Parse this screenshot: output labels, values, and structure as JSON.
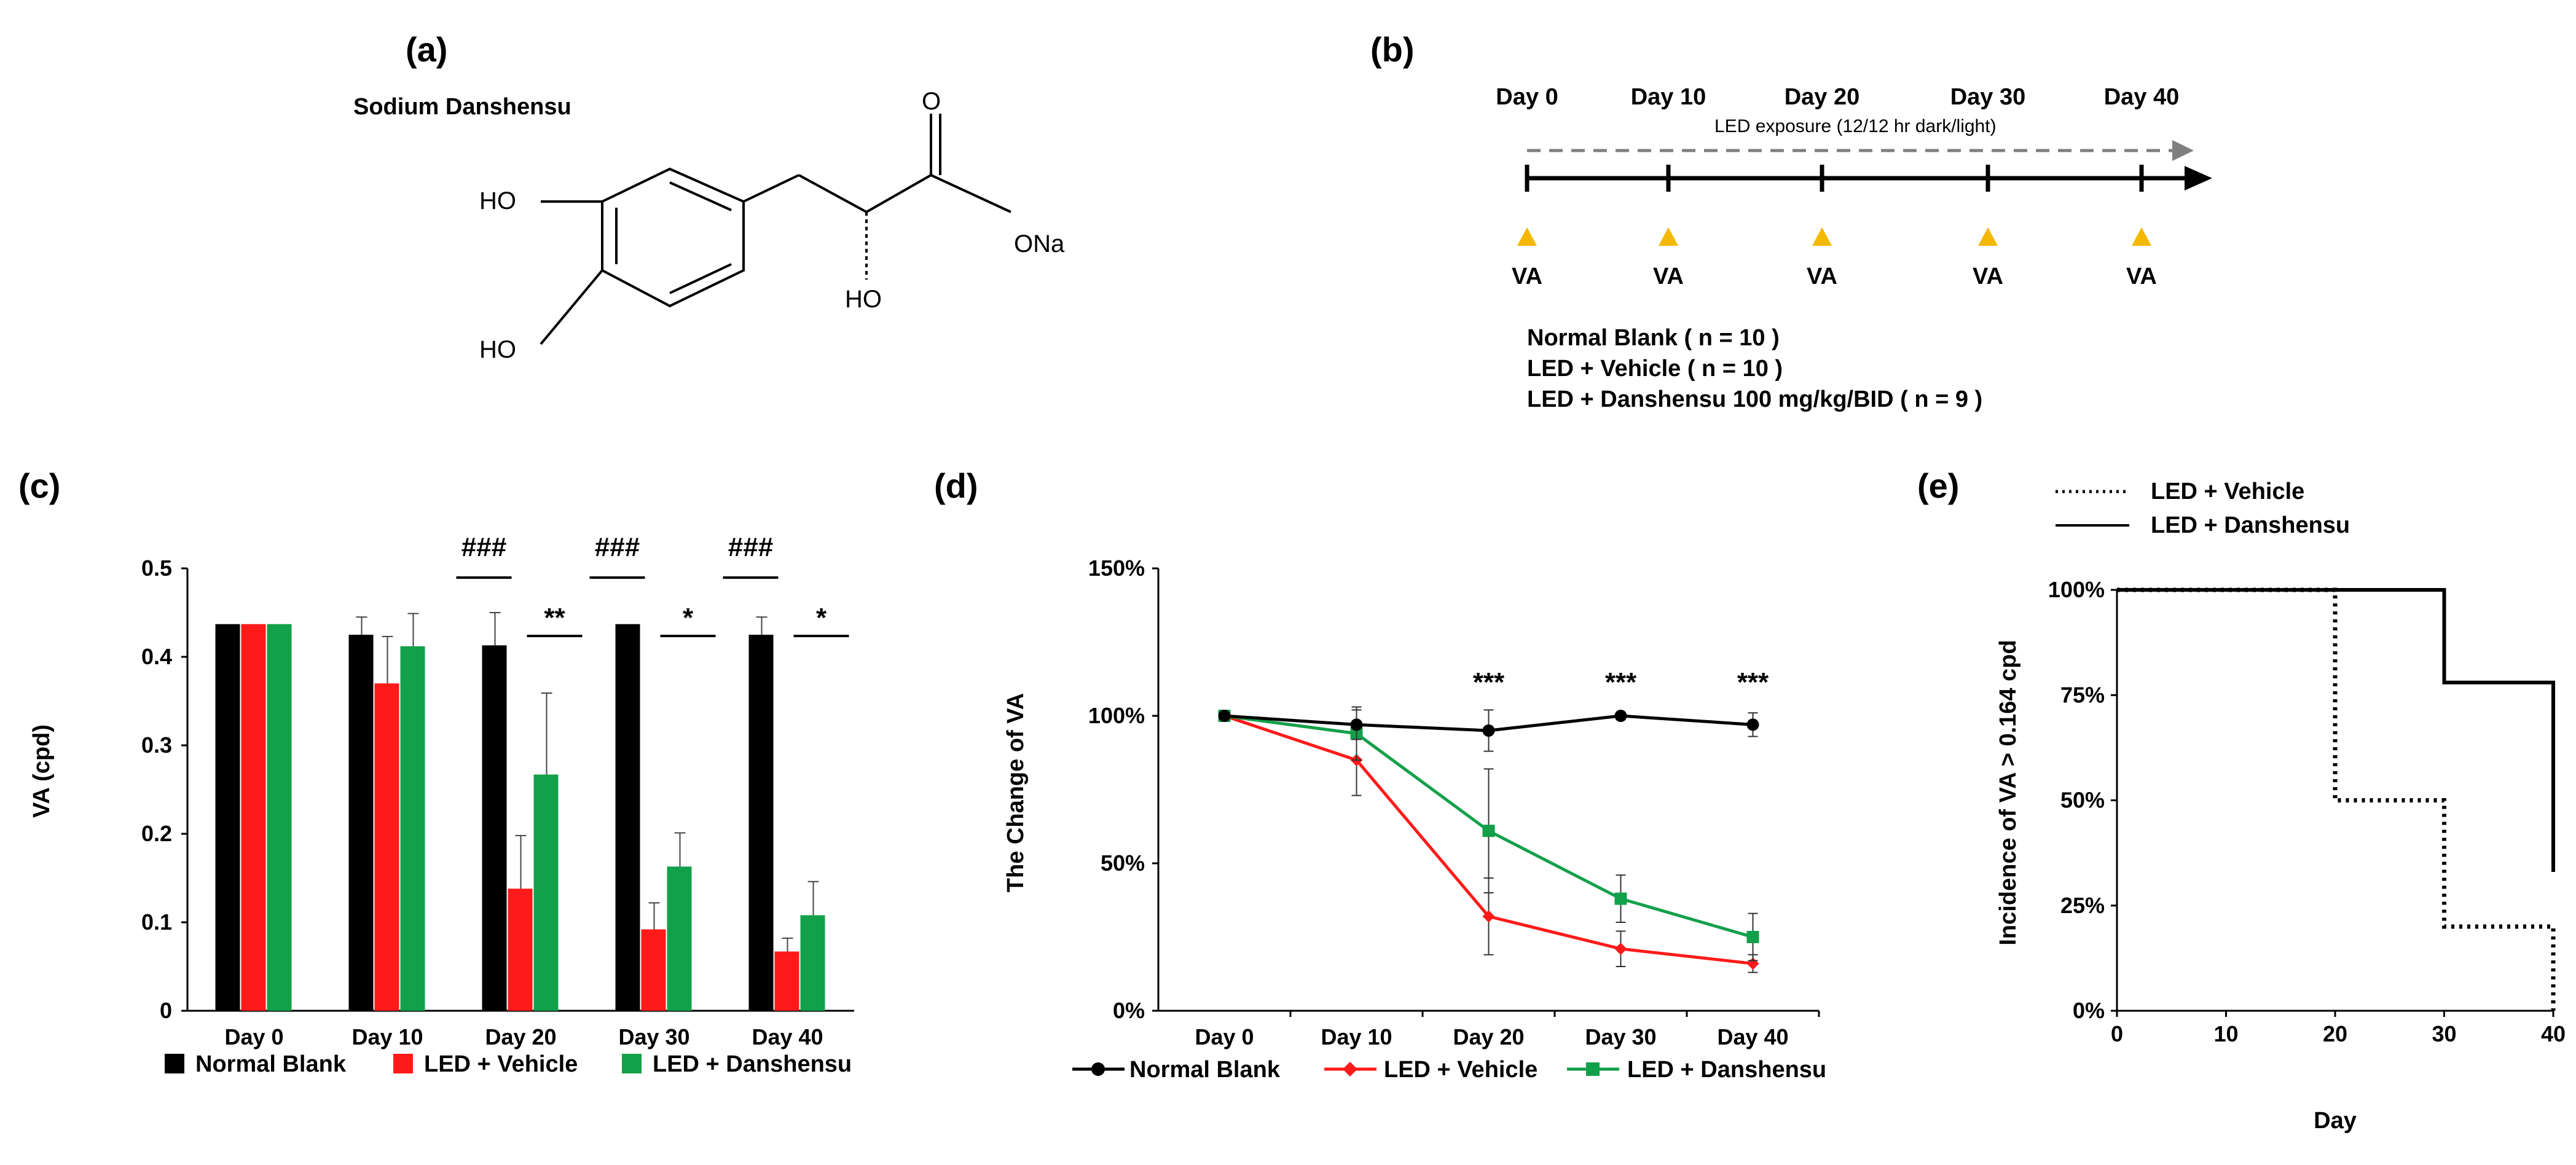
{
  "panels": {
    "a": {
      "label": "(a)",
      "compound_name": "Sodium Danshensu",
      "atom_labels": [
        "HO",
        "HO",
        "O",
        "ONa",
        "HO"
      ]
    },
    "b": {
      "label": "(b)",
      "timepoints": [
        "Day 0",
        "Day 10",
        "Day 20",
        "Day 30",
        "Day 40"
      ],
      "exposure_label": "LED exposure (12/12 hr dark/light)",
      "marker_label": "VA",
      "groups": [
        "Normal Blank   ( n = 10 )",
        "LED + Vehicle ( n = 10 )",
        "LED + Danshensu 100 mg/kg/BID ( n = 9 )"
      ]
    },
    "c": {
      "label": "(c)"
    },
    "d": {
      "label": "(d)"
    },
    "e": {
      "label": "(e)"
    }
  },
  "colors": {
    "normal": "#000000",
    "vehicle": "#ff1a1a",
    "danshensu": "#13a04a",
    "arrow_gray": "#7f7f7f",
    "triangle": "#f5b800"
  },
  "chart_data": [
    {
      "id": "c",
      "type": "bar",
      "ylabel": "VA (cpd)",
      "ylim": [
        0,
        0.5
      ],
      "yticks": [
        "0",
        "0.1",
        "0.2",
        "0.3",
        "0.4",
        "0.5"
      ],
      "categories": [
        "Day 0",
        "Day 10",
        "Day 20",
        "Day 30",
        "Day 40"
      ],
      "series": [
        {
          "name": "Normal Blank",
          "values": [
            0.437,
            0.425,
            0.413,
            0.437,
            0.425
          ],
          "errors": [
            0,
            0.02,
            0.037,
            0,
            0.02
          ]
        },
        {
          "name": "LED + Vehicle",
          "values": [
            0.437,
            0.37,
            0.138,
            0.092,
            0.067
          ],
          "errors": [
            0,
            0.053,
            0.06,
            0.03,
            0.015
          ]
        },
        {
          "name": "LED + Danshensu",
          "values": [
            0.437,
            0.412,
            0.267,
            0.163,
            0.108
          ],
          "errors": [
            0,
            0.037,
            0.092,
            0.038,
            0.038
          ]
        }
      ],
      "annotations": [
        {
          "category": "Day 20",
          "hash": "###",
          "star": "**"
        },
        {
          "category": "Day 30",
          "hash": "###",
          "star": "*"
        },
        {
          "category": "Day 40",
          "hash": "###",
          "star": "*"
        }
      ]
    },
    {
      "id": "d",
      "type": "line",
      "ylabel": "The Change of  VA",
      "ylim": [
        0,
        150
      ],
      "yticks": [
        "0%",
        "50%",
        "100%",
        "150%"
      ],
      "categories": [
        "Day 0",
        "Day 10",
        "Day 20",
        "Day 30",
        "Day 40"
      ],
      "series": [
        {
          "name": "Normal Blank",
          "values": [
            100,
            97,
            95,
            100,
            97
          ],
          "errors": [
            0,
            5,
            7,
            0,
            4
          ]
        },
        {
          "name": "LED + Vehicle",
          "values": [
            100,
            85,
            32,
            21,
            16
          ],
          "errors": [
            0,
            12,
            13,
            6,
            3
          ]
        },
        {
          "name": "LED + Danshensu",
          "values": [
            100,
            94,
            61,
            38,
            25
          ],
          "errors": [
            0,
            9,
            21,
            8,
            8
          ]
        }
      ],
      "annotations": [
        "***",
        "***",
        "***"
      ],
      "annotation_categories": [
        "Day 20",
        "Day 30",
        "Day 40"
      ]
    },
    {
      "id": "e",
      "type": "line",
      "xlabel": "Day",
      "ylabel": "Incidence of  VA > 0.164 cpd",
      "xlim": [
        0,
        40
      ],
      "ylim": [
        0,
        100
      ],
      "xticks": [
        "0",
        "10",
        "20",
        "30",
        "40"
      ],
      "yticks": [
        "0%",
        "25%",
        "50%",
        "75%",
        "100%"
      ],
      "series": [
        {
          "name": "LED + Vehicle",
          "style": "dotted",
          "x": [
            0,
            20,
            20,
            30,
            30,
            40,
            40
          ],
          "y": [
            100,
            100,
            50,
            50,
            20,
            20,
            0
          ]
        },
        {
          "name": "LED + Danshensu",
          "style": "solid",
          "x": [
            0,
            30,
            30,
            40,
            40
          ],
          "y": [
            100,
            100,
            78,
            78,
            33
          ]
        }
      ]
    }
  ]
}
